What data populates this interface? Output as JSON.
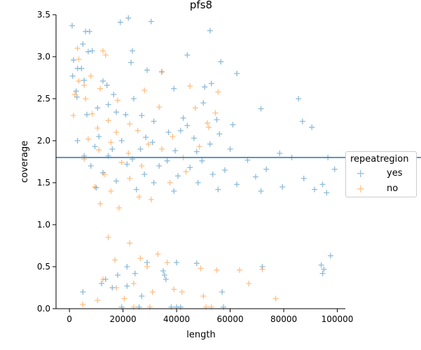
{
  "chart_data": {
    "type": "scatter",
    "title": "pfs8",
    "xlabel": "length",
    "ylabel": "coverage",
    "xlim": [
      -5000,
      103000
    ],
    "ylim": [
      0,
      3.5
    ],
    "xticks": [
      0,
      20000,
      40000,
      60000,
      80000,
      100000
    ],
    "yticks": [
      0.0,
      0.5,
      1.0,
      1.5,
      2.0,
      2.5,
      3.0,
      3.5
    ],
    "xtick_labels": [
      "0",
      "20000",
      "40000",
      "60000",
      "80000",
      "100000"
    ],
    "ytick_labels": [
      "0.0",
      "0.5",
      "1.0",
      "1.5",
      "2.0",
      "2.5",
      "3.0",
      "3.5"
    ],
    "hline": 1.8,
    "marker": "+",
    "legend": {
      "title": "repeatregion",
      "placement": "right"
    },
    "series": [
      {
        "name": "yes",
        "color": "#1f77b4",
        "points": [
          [
            1000,
            3.37
          ],
          [
            6000,
            3.3
          ],
          [
            7500,
            3.3
          ],
          [
            19000,
            3.41
          ],
          [
            22000,
            3.46
          ],
          [
            30500,
            3.42
          ],
          [
            52500,
            3.31
          ],
          [
            5000,
            3.15
          ],
          [
            7000,
            3.06
          ],
          [
            8500,
            3.07
          ],
          [
            23500,
            3.07
          ],
          [
            44000,
            3.02
          ],
          [
            1500,
            2.96
          ],
          [
            23000,
            2.93
          ],
          [
            56500,
            2.94
          ],
          [
            3000,
            2.86
          ],
          [
            4500,
            2.86
          ],
          [
            29000,
            2.84
          ],
          [
            34500,
            2.82
          ],
          [
            62500,
            2.8
          ],
          [
            1200,
            2.77
          ],
          [
            5500,
            2.72
          ],
          [
            12500,
            2.71
          ],
          [
            14000,
            2.66
          ],
          [
            39000,
            2.62
          ],
          [
            53000,
            2.68
          ],
          [
            50500,
            2.64
          ],
          [
            2500,
            2.59
          ],
          [
            16500,
            2.55
          ],
          [
            24000,
            2.5
          ],
          [
            2800,
            2.52
          ],
          [
            14500,
            2.43
          ],
          [
            50000,
            2.45
          ],
          [
            85500,
            2.5
          ],
          [
            10500,
            2.39
          ],
          [
            17500,
            2.34
          ],
          [
            6500,
            2.31
          ],
          [
            21000,
            2.31
          ],
          [
            27000,
            2.3
          ],
          [
            42500,
            2.27
          ],
          [
            55000,
            2.25
          ],
          [
            71500,
            2.38
          ],
          [
            31500,
            2.23
          ],
          [
            44000,
            2.18
          ],
          [
            61000,
            2.19
          ],
          [
            87000,
            2.23
          ],
          [
            90500,
            2.16
          ],
          [
            37000,
            2.1
          ],
          [
            41500,
            2.12
          ],
          [
            56000,
            2.08
          ],
          [
            11000,
            2.05
          ],
          [
            28500,
            2.04
          ],
          [
            46500,
            2.03
          ],
          [
            3000,
            2.0
          ],
          [
            19500,
            2.0
          ],
          [
            31000,
            1.98
          ],
          [
            52500,
            1.96
          ],
          [
            9500,
            1.93
          ],
          [
            16000,
            1.9
          ],
          [
            26500,
            1.9
          ],
          [
            39500,
            1.88
          ],
          [
            47500,
            1.87
          ],
          [
            60000,
            1.9
          ],
          [
            78500,
            1.85
          ],
          [
            5500,
            1.82
          ],
          [
            14500,
            1.82
          ],
          [
            23500,
            1.78
          ],
          [
            36500,
            1.76
          ],
          [
            49500,
            1.76
          ],
          [
            66500,
            1.77
          ],
          [
            83000,
            1.8
          ],
          [
            96500,
            1.8
          ],
          [
            8000,
            1.7
          ],
          [
            21500,
            1.72
          ],
          [
            33500,
            1.7
          ],
          [
            45000,
            1.68
          ],
          [
            58000,
            1.65
          ],
          [
            73500,
            1.66
          ],
          [
            99000,
            1.66
          ],
          [
            12500,
            1.62
          ],
          [
            28000,
            1.6
          ],
          [
            40500,
            1.58
          ],
          [
            53500,
            1.6
          ],
          [
            69500,
            1.57
          ],
          [
            87500,
            1.55
          ],
          [
            94500,
            1.48
          ],
          [
            17500,
            1.52
          ],
          [
            31500,
            1.5
          ],
          [
            48000,
            1.5
          ],
          [
            62500,
            1.48
          ],
          [
            79500,
            1.45
          ],
          [
            10000,
            1.44
          ],
          [
            25000,
            1.42
          ],
          [
            39000,
            1.4
          ],
          [
            55500,
            1.42
          ],
          [
            71500,
            1.4
          ],
          [
            91500,
            1.42
          ],
          [
            96000,
            1.38
          ],
          [
            35000,
            0.45
          ],
          [
            35500,
            0.4
          ],
          [
            36000,
            0.35
          ],
          [
            21500,
            0.5
          ],
          [
            29000,
            0.55
          ],
          [
            18000,
            0.4
          ],
          [
            24500,
            0.42
          ],
          [
            13500,
            0.35
          ],
          [
            12000,
            0.3
          ],
          [
            40000,
            0.55
          ],
          [
            57000,
            0.2
          ],
          [
            16000,
            0.25
          ],
          [
            27000,
            0.15
          ],
          [
            5000,
            0.2
          ],
          [
            21500,
            0.27
          ],
          [
            19500,
            0.02
          ],
          [
            26000,
            0.02
          ],
          [
            38000,
            0.02
          ],
          [
            40000,
            0.02
          ],
          [
            41500,
            0.02
          ],
          [
            57500,
            0.02
          ],
          [
            95000,
            0.47
          ],
          [
            94500,
            0.42
          ],
          [
            97500,
            0.63
          ],
          [
            94000,
            0.52
          ],
          [
            72000,
            0.5
          ],
          [
            47500,
            0.54
          ]
        ]
      },
      {
        "name": "no",
        "color": "#ff7f0e",
        "points": [
          [
            3000,
            3.1
          ],
          [
            12500,
            3.07
          ],
          [
            13500,
            3.02
          ],
          [
            3500,
            2.97
          ],
          [
            34500,
            2.82
          ],
          [
            8000,
            2.77
          ],
          [
            3500,
            2.71
          ],
          [
            5500,
            2.66
          ],
          [
            11500,
            2.62
          ],
          [
            45000,
            2.65
          ],
          [
            55500,
            2.58
          ],
          [
            2000,
            2.55
          ],
          [
            6000,
            2.5
          ],
          [
            18000,
            2.48
          ],
          [
            33500,
            2.4
          ],
          [
            47000,
            2.39
          ],
          [
            54500,
            2.33
          ],
          [
            28000,
            2.6
          ],
          [
            1500,
            2.3
          ],
          [
            8500,
            2.32
          ],
          [
            14500,
            2.24
          ],
          [
            22500,
            2.2
          ],
          [
            51500,
            2.21
          ],
          [
            10500,
            2.15
          ],
          [
            17500,
            2.1
          ],
          [
            25500,
            2.12
          ],
          [
            52000,
            2.16
          ],
          [
            38500,
            2.05
          ],
          [
            7000,
            2.02
          ],
          [
            15500,
            1.98
          ],
          [
            29500,
            1.96
          ],
          [
            48500,
            1.93
          ],
          [
            11000,
            1.89
          ],
          [
            22000,
            1.85
          ],
          [
            34500,
            1.9
          ],
          [
            42500,
            1.8
          ],
          [
            5500,
            1.78
          ],
          [
            19500,
            1.74
          ],
          [
            27000,
            1.7
          ],
          [
            43500,
            1.63
          ],
          [
            13000,
            1.6
          ],
          [
            22500,
            1.55
          ],
          [
            37500,
            1.5
          ],
          [
            9500,
            1.45
          ],
          [
            15500,
            1.4
          ],
          [
            26000,
            1.33
          ],
          [
            30500,
            1.3
          ],
          [
            11500,
            1.25
          ],
          [
            18500,
            1.2
          ],
          [
            14500,
            0.85
          ],
          [
            22500,
            0.78
          ],
          [
            26500,
            0.6
          ],
          [
            33000,
            0.65
          ],
          [
            36500,
            0.55
          ],
          [
            17000,
            0.58
          ],
          [
            29000,
            0.5
          ],
          [
            49000,
            0.48
          ],
          [
            63500,
            0.46
          ],
          [
            72000,
            0.47
          ],
          [
            55000,
            0.46
          ],
          [
            12500,
            0.35
          ],
          [
            17500,
            0.25
          ],
          [
            24000,
            0.3
          ],
          [
            31000,
            0.2
          ],
          [
            39000,
            0.23
          ],
          [
            42000,
            0.2
          ],
          [
            67000,
            0.3
          ],
          [
            50000,
            0.15
          ],
          [
            20500,
            0.12
          ],
          [
            24000,
            0.02
          ],
          [
            30000,
            0.02
          ],
          [
            51000,
            0.02
          ],
          [
            53000,
            0.02
          ],
          [
            77000,
            0.12
          ],
          [
            10500,
            0.1
          ],
          [
            5000,
            0.05
          ]
        ]
      }
    ]
  }
}
